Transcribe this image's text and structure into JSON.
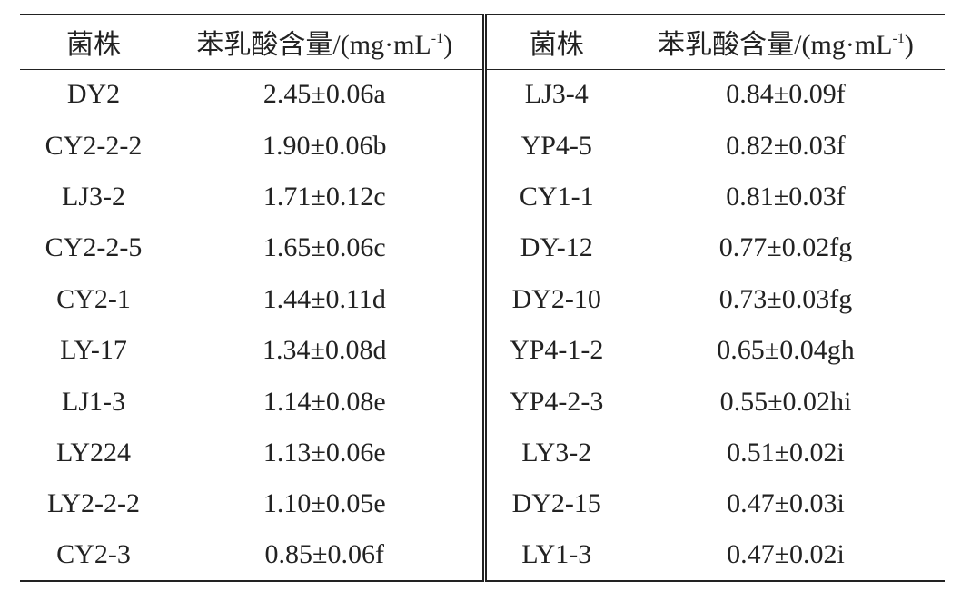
{
  "table": {
    "header": [
      {
        "text": "菌株"
      },
      {
        "text": "苯乳酸含量/(mg·mL",
        "sup": "-1",
        "end": ")"
      },
      {
        "text": "菌株"
      },
      {
        "text": "苯乳酸含量/(mg·mL",
        "sup": "-1",
        "end": ")"
      }
    ],
    "rows": [
      [
        "DY2",
        "2.45±0.06a",
        "LJ3-4",
        "0.84±0.09f"
      ],
      [
        "CY2-2-2",
        "1.90±0.06b",
        "YP4-5",
        "0.82±0.03f"
      ],
      [
        "LJ3-2",
        "1.71±0.12c",
        "CY1-1",
        "0.81±0.03f"
      ],
      [
        "CY2-2-5",
        "1.65±0.06c",
        "DY-12",
        "0.77±0.02fg"
      ],
      [
        "CY2-1",
        "1.44±0.11d",
        "DY2-10",
        "0.73±0.03fg"
      ],
      [
        "LY-17",
        "1.34±0.08d",
        "YP4-1-2",
        "0.65±0.04gh"
      ],
      [
        "LJ1-3",
        "1.14±0.08e",
        "YP4-2-3",
        "0.55±0.02hi"
      ],
      [
        "LY224",
        "1.13±0.06e",
        "LY3-2",
        "0.51±0.02i"
      ],
      [
        "LY2-2-2",
        "1.10±0.05e",
        "DY2-15",
        "0.47±0.03i"
      ],
      [
        "CY2-3",
        "0.85±0.06f",
        "LY1-3",
        "0.47±0.02i"
      ]
    ]
  }
}
